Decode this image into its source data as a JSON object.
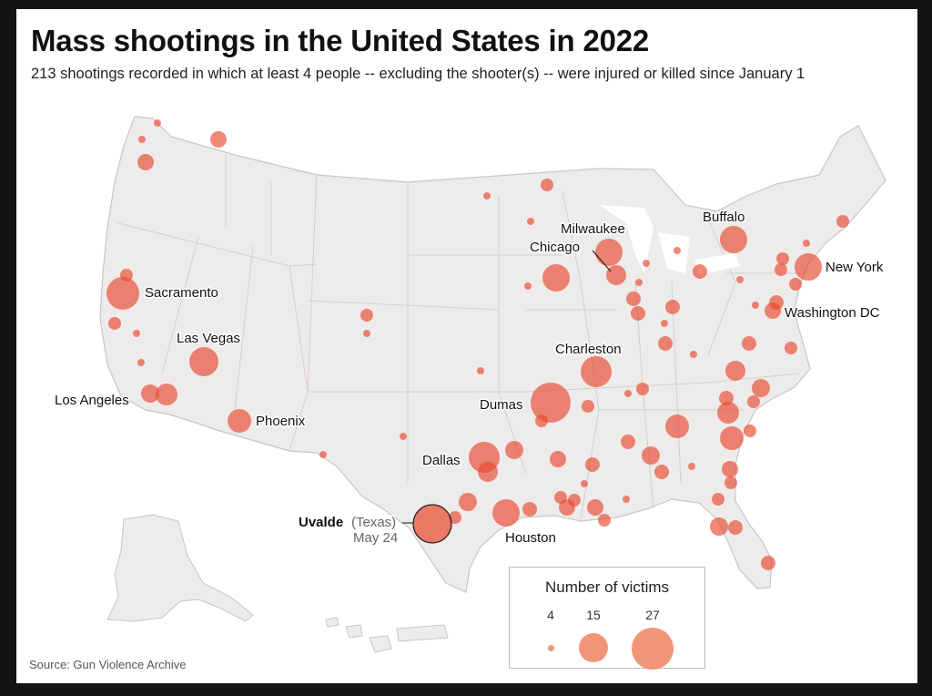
{
  "header": {
    "title": "Mass shootings in the United States in 2022",
    "subtitle": "213 shootings recorded in which at least 4 people -- excluding the shooter(s) -- were injured or killed since January 1"
  },
  "source": "Source: Gun Violence Archive",
  "cities": {
    "sacramento": "Sacramento",
    "las_vegas": "Las Vegas",
    "los_angeles": "Los Angeles",
    "phoenix": "Phoenix",
    "milwaukee": "Milwaukee",
    "chicago": "Chicago",
    "buffalo": "Buffalo",
    "new_york": "New York",
    "washington_dc": "Washington DC",
    "charleston": "Charleston",
    "dumas": "Dumas",
    "dallas": "Dallas",
    "houston": "Houston",
    "uvalde": "Uvalde",
    "uvalde_state": "(Texas)",
    "uvalde_date": "May 24"
  },
  "legend": {
    "title": "Number of victims",
    "sizes": [
      "4",
      "15",
      "27"
    ]
  },
  "colors": {
    "bubble": "#e8482e",
    "land": "#eeeceb",
    "border": "#c9c5c2"
  }
}
